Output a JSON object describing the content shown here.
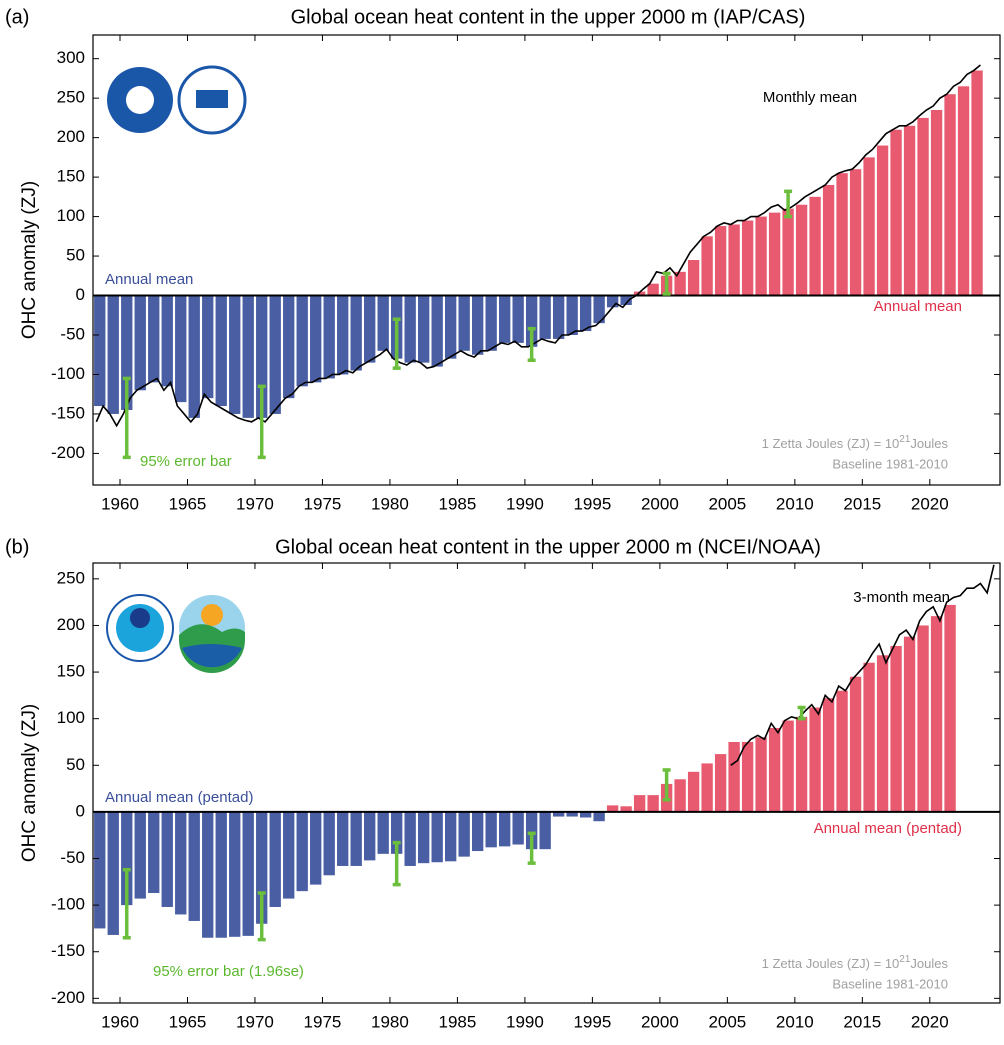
{
  "chart_data": [
    {
      "type": "bar",
      "panel_label": "(a)",
      "title": "Global ocean heat content in the upper 2000 m (IAP/CAS)",
      "y_label": "OHC anomaly (ZJ)",
      "x": [
        1958,
        1959,
        1960,
        1961,
        1962,
        1963,
        1964,
        1965,
        1966,
        1967,
        1968,
        1969,
        1970,
        1971,
        1972,
        1973,
        1974,
        1975,
        1976,
        1977,
        1978,
        1979,
        1980,
        1981,
        1982,
        1983,
        1984,
        1985,
        1986,
        1987,
        1988,
        1989,
        1990,
        1991,
        1992,
        1993,
        1994,
        1995,
        1996,
        1997,
        1998,
        1999,
        2000,
        2001,
        2002,
        2003,
        2004,
        2005,
        2006,
        2007,
        2008,
        2009,
        2010,
        2011,
        2012,
        2013,
        2014,
        2015,
        2016,
        2017,
        2018,
        2019,
        2020,
        2021,
        2022,
        2023
      ],
      "values": [
        -140,
        -150,
        -145,
        -120,
        -110,
        -115,
        -135,
        -155,
        -130,
        -140,
        -150,
        -155,
        -155,
        -150,
        -130,
        -115,
        -110,
        -105,
        -100,
        -95,
        -85,
        -70,
        -80,
        -85,
        -85,
        -90,
        -80,
        -70,
        -75,
        -70,
        -60,
        -60,
        -65,
        -55,
        -55,
        -50,
        -45,
        -35,
        -15,
        -12,
        5,
        15,
        25,
        30,
        45,
        75,
        88,
        90,
        95,
        100,
        105,
        110,
        115,
        125,
        140,
        155,
        160,
        175,
        190,
        210,
        215,
        225,
        235,
        255,
        265,
        285
      ],
      "colors": {
        "below_zero": "#4a5fa3",
        "above_zero": "#e85a6f"
      },
      "line": {
        "color": "#000000",
        "x": [
          1958.25,
          1958.75,
          1959.25,
          1959.75,
          1960.25,
          1960.75,
          1961.25,
          1961.75,
          1962.25,
          1962.75,
          1963.25,
          1963.75,
          1964.25,
          1964.75,
          1965.25,
          1965.75,
          1966.25,
          1966.75,
          1967.25,
          1967.75,
          1968.25,
          1968.75,
          1969.25,
          1969.75,
          1970.25,
          1970.75,
          1971.25,
          1971.75,
          1972.25,
          1972.75,
          1973.25,
          1973.75,
          1974.25,
          1974.75,
          1975.25,
          1975.75,
          1976.25,
          1976.75,
          1977.25,
          1977.75,
          1978.25,
          1978.75,
          1979.25,
          1979.75,
          1980.25,
          1980.75,
          1981.25,
          1981.75,
          1982.25,
          1982.75,
          1983.25,
          1983.75,
          1984.25,
          1984.75,
          1985.25,
          1985.75,
          1986.25,
          1986.75,
          1987.25,
          1987.75,
          1988.25,
          1988.75,
          1989.25,
          1989.75,
          1990.25,
          1990.75,
          1991.25,
          1991.75,
          1992.25,
          1992.75,
          1993.25,
          1993.75,
          1994.25,
          1994.75,
          1995.25,
          1995.75,
          1996.25,
          1996.75,
          1997.25,
          1997.75,
          1998.25,
          1998.75,
          1999.25,
          1999.75,
          2000.25,
          2000.75,
          2001.25,
          2001.75,
          2002.25,
          2002.75,
          2003.25,
          2003.75,
          2004.25,
          2004.75,
          2005.25,
          2005.75,
          2006.25,
          2006.75,
          2007.25,
          2007.75,
          2008.25,
          2008.75,
          2009.25,
          2009.75,
          2010.25,
          2010.75,
          2011.25,
          2011.75,
          2012.25,
          2012.75,
          2013.25,
          2013.75,
          2014.25,
          2014.75,
          2015.25,
          2015.75,
          2016.25,
          2016.75,
          2017.25,
          2017.75,
          2018.25,
          2018.75,
          2019.25,
          2019.75,
          2020.25,
          2020.75,
          2021.25,
          2021.75,
          2022.25,
          2022.75,
          2023.25,
          2023.75
        ],
        "values": [
          -160,
          -140,
          -150,
          -165,
          -150,
          -130,
          -120,
          -115,
          -110,
          -105,
          -120,
          -110,
          -140,
          -150,
          -160,
          -150,
          -125,
          -135,
          -140,
          -145,
          -150,
          -155,
          -158,
          -160,
          -155,
          -160,
          -150,
          -140,
          -130,
          -125,
          -115,
          -110,
          -110,
          -105,
          -105,
          -100,
          -100,
          -95,
          -98,
          -90,
          -85,
          -80,
          -75,
          -68,
          -80,
          -85,
          -88,
          -82,
          -85,
          -92,
          -90,
          -85,
          -80,
          -75,
          -70,
          -75,
          -78,
          -70,
          -70,
          -65,
          -60,
          -62,
          -58,
          -65,
          -65,
          -60,
          -55,
          -58,
          -60,
          -50,
          -50,
          -45,
          -45,
          -40,
          -38,
          -30,
          -20,
          -10,
          -15,
          -5,
          0,
          8,
          15,
          30,
          28,
          35,
          25,
          40,
          55,
          65,
          75,
          80,
          88,
          92,
          90,
          95,
          95,
          100,
          100,
          105,
          112,
          115,
          108,
          112,
          118,
          125,
          130,
          135,
          140,
          150,
          155,
          158,
          160,
          168,
          178,
          185,
          195,
          205,
          210,
          215,
          215,
          220,
          228,
          235,
          240,
          250,
          255,
          265,
          270,
          280,
          285,
          292
        ]
      },
      "error_bars": {
        "color": "#6cbf3c",
        "x": [
          1960.5,
          1970.5,
          1980.5,
          1990.5,
          2000.5,
          2009.5
        ],
        "values": [
          -155,
          -160,
          -61,
          -62,
          15,
          116
        ],
        "errors": [
          50,
          45,
          31,
          20,
          13,
          16
        ]
      },
      "annotations": [
        {
          "text": "Monthly mean",
          "color": "#000000"
        },
        {
          "text": "Annual mean",
          "color": "#3a4f9a"
        },
        {
          "text": "Annual mean",
          "color": "#e0304a"
        },
        {
          "text": "95% error bar",
          "color": "#5cb82e"
        }
      ],
      "unit_note": [
        "1 Zetta Joules (ZJ) = 10",
        "21",
        "Joules"
      ],
      "baseline_note": "Baseline 1981-2010",
      "xlim": [
        1958,
        2025.2
      ],
      "xticks": [
        1960,
        1965,
        1970,
        1975,
        1980,
        1985,
        1990,
        1995,
        2000,
        2005,
        2010,
        2015,
        2020
      ],
      "ylim": [
        -240,
        330
      ],
      "yticks": [
        -200,
        -150,
        -100,
        -50,
        0,
        50,
        100,
        150,
        200,
        250,
        300
      ]
    },
    {
      "type": "bar",
      "panel_label": "(b)",
      "title": "Global ocean heat content in the upper 2000 m (NCEI/NOAA)",
      "y_label": "OHC anomaly (ZJ)",
      "x": [
        1958,
        1959,
        1960,
        1961,
        1962,
        1963,
        1964,
        1965,
        1966,
        1967,
        1968,
        1969,
        1970,
        1971,
        1972,
        1973,
        1974,
        1975,
        1976,
        1977,
        1978,
        1979,
        1980,
        1981,
        1982,
        1983,
        1984,
        1985,
        1986,
        1987,
        1988,
        1989,
        1990,
        1991,
        1992,
        1993,
        1994,
        1995,
        1996,
        1997,
        1998,
        1999,
        2000,
        2001,
        2002,
        2003,
        2004,
        2005,
        2006,
        2007,
        2008,
        2009,
        2010,
        2011,
        2012,
        2013,
        2014,
        2015,
        2016,
        2017,
        2018,
        2019,
        2020,
        2021
      ],
      "values": [
        -125,
        -132,
        -100,
        -93,
        -87,
        -102,
        -110,
        -117,
        -135,
        -135,
        -134,
        -133,
        -120,
        -102,
        -93,
        -85,
        -78,
        -68,
        -58,
        -58,
        -52,
        -45,
        -45,
        -58,
        -55,
        -54,
        -53,
        -48,
        -42,
        -38,
        -37,
        -35,
        -40,
        -40,
        -5,
        -5,
        -6,
        -10,
        7,
        6,
        18,
        18,
        30,
        35,
        43,
        52,
        62,
        75,
        75,
        80,
        90,
        98,
        102,
        112,
        122,
        130,
        145,
        160,
        168,
        178,
        188,
        200,
        210,
        222
      ],
      "colors": {
        "below_zero": "#4a5fa3",
        "above_zero": "#e85a6f"
      },
      "line": {
        "color": "#000000",
        "x": [
          2005.25,
          2005.75,
          2006.25,
          2006.75,
          2007.25,
          2007.75,
          2008.25,
          2008.75,
          2009.25,
          2009.75,
          2010.25,
          2010.75,
          2011.25,
          2011.75,
          2012.25,
          2012.75,
          2013.25,
          2013.75,
          2014.25,
          2014.75,
          2015.25,
          2015.75,
          2016.25,
          2016.75,
          2017.25,
          2017.75,
          2018.25,
          2018.75,
          2019.25,
          2019.75,
          2020.25,
          2020.75,
          2021.25,
          2021.75,
          2022.25,
          2022.75,
          2023.25,
          2023.75,
          2024.25,
          2024.75
        ],
        "values": [
          50,
          55,
          70,
          78,
          82,
          78,
          95,
          85,
          98,
          102,
          100,
          108,
          115,
          105,
          125,
          118,
          135,
          130,
          142,
          150,
          158,
          170,
          180,
          160,
          175,
          190,
          195,
          185,
          205,
          215,
          220,
          205,
          225,
          230,
          232,
          240,
          240,
          245,
          235,
          265
        ]
      },
      "error_bars": {
        "color": "#6cbf3c",
        "x": [
          1960.5,
          1970.5,
          1980.5,
          1990.5,
          2000.5,
          2010.5
        ],
        "values": [
          -98.5,
          -112,
          -55.5,
          -39,
          29,
          106
        ],
        "errors": [
          36.5,
          25,
          22.5,
          16,
          16,
          6
        ]
      },
      "annotations": [
        {
          "text": "3-month mean",
          "color": "#000000"
        },
        {
          "text": "Annual mean (pentad)",
          "color": "#3a4f9a"
        },
        {
          "text": "Annual mean (pentad)",
          "color": "#e0304a"
        },
        {
          "text": "95% error bar (1.96se)",
          "color": "#5cb82e"
        }
      ],
      "unit_note": [
        "1 Zetta Joules (ZJ) = 10",
        "21",
        "Joules"
      ],
      "baseline_note": "Baseline 1981-2010",
      "xlim": [
        1958,
        2025.2
      ],
      "xticks": [
        1960,
        1965,
        1970,
        1975,
        1980,
        1985,
        1990,
        1995,
        2000,
        2005,
        2010,
        2015,
        2020
      ],
      "ylim": [
        -205,
        267
      ],
      "yticks": [
        -200,
        -150,
        -100,
        -50,
        0,
        50,
        100,
        150,
        200,
        250
      ]
    }
  ]
}
